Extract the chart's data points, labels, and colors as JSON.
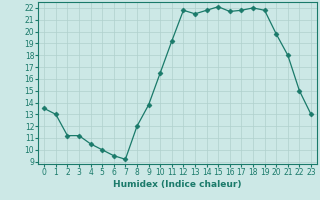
{
  "x": [
    0,
    1,
    2,
    3,
    4,
    5,
    6,
    7,
    8,
    9,
    10,
    11,
    12,
    13,
    14,
    15,
    16,
    17,
    18,
    19,
    20,
    21,
    22,
    23
  ],
  "y": [
    13.5,
    13.0,
    11.2,
    11.2,
    10.5,
    10.0,
    9.5,
    9.2,
    12.0,
    13.8,
    16.5,
    19.2,
    21.8,
    21.5,
    21.8,
    22.1,
    21.7,
    21.8,
    22.0,
    21.8,
    19.8,
    18.0,
    15.0,
    13.0
  ],
  "line_color": "#1a7a6a",
  "marker": "D",
  "marker_size": 2.5,
  "bg_color": "#cce8e6",
  "grid_color": "#b0d0cd",
  "xlabel": "Humidex (Indice chaleur)",
  "xlim": [
    -0.5,
    23.5
  ],
  "ylim": [
    8.8,
    22.5
  ],
  "yticks": [
    9,
    10,
    11,
    12,
    13,
    14,
    15,
    16,
    17,
    18,
    19,
    20,
    21,
    22
  ],
  "xtick_labels": [
    "0",
    "1",
    "2",
    "3",
    "4",
    "5",
    "6",
    "7",
    "8",
    "9",
    "10",
    "11",
    "12",
    "13",
    "14",
    "15",
    "16",
    "17",
    "18",
    "19",
    "20",
    "21",
    "22",
    "23"
  ],
  "tick_fontsize": 5.5,
  "label_fontsize": 6.5
}
